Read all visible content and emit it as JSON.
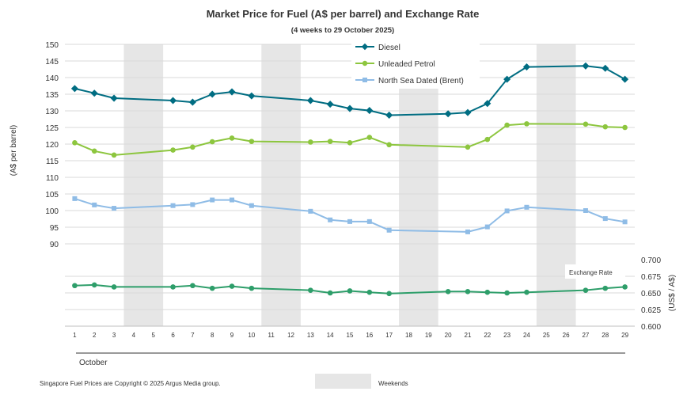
{
  "chart_data": {
    "type": "line",
    "title": "Market Price for Fuel (A$ per barrel) and Exchange Rate",
    "subtitle": "(4 weeks to 29 October 2025)",
    "ylabel": "(A$ per barrel)",
    "y2label": "(US$ / A$)",
    "xlabel": "October",
    "ylim": [
      90,
      150
    ],
    "yticks": [
      90,
      95,
      100,
      105,
      110,
      115,
      120,
      125,
      130,
      135,
      140,
      145,
      150
    ],
    "y2lim": [
      0.6,
      0.7
    ],
    "y2ticks": [
      "0.600",
      "0.625",
      "0.650",
      "0.675",
      "0.700"
    ],
    "categories": [
      "1",
      "2",
      "3",
      "4",
      "5",
      "6",
      "7",
      "8",
      "9",
      "10",
      "11",
      "12",
      "13",
      "14",
      "15",
      "16",
      "17",
      "18",
      "19",
      "20",
      "21",
      "22",
      "23",
      "24",
      "25",
      "26",
      "27",
      "28",
      "29"
    ],
    "weekends": [
      [
        4,
        5
      ],
      [
        11,
        12
      ],
      [
        18,
        19
      ],
      [
        25,
        26
      ]
    ],
    "series": [
      {
        "name": "Diesel",
        "axis": "left",
        "color": "#006d82",
        "marker": "diamond",
        "points": [
          [
            1,
            136.7
          ],
          [
            2,
            135.3
          ],
          [
            3,
            133.8
          ],
          [
            6,
            133.1
          ],
          [
            7,
            132.6
          ],
          [
            8,
            135.0
          ],
          [
            9,
            135.7
          ],
          [
            10,
            134.5
          ],
          [
            13,
            133.1
          ],
          [
            14,
            132.0
          ],
          [
            15,
            130.7
          ],
          [
            16,
            130.1
          ],
          [
            17,
            128.7
          ],
          [
            20,
            129.1
          ],
          [
            21,
            129.5
          ],
          [
            22,
            132.2
          ],
          [
            23,
            139.5
          ],
          [
            24,
            143.2
          ],
          [
            27,
            143.5
          ],
          [
            28,
            142.8
          ],
          [
            29,
            139.5
          ]
        ]
      },
      {
        "name": "Unleaded Petrol",
        "axis": "left",
        "color": "#8dc63f",
        "marker": "circle",
        "points": [
          [
            1,
            120.4
          ],
          [
            2,
            117.9
          ],
          [
            3,
            116.7
          ],
          [
            6,
            118.2
          ],
          [
            7,
            119.1
          ],
          [
            8,
            120.7
          ],
          [
            9,
            121.8
          ],
          [
            10,
            120.8
          ],
          [
            13,
            120.6
          ],
          [
            14,
            120.8
          ],
          [
            15,
            120.4
          ],
          [
            16,
            122.0
          ],
          [
            17,
            119.8
          ],
          [
            21,
            119.1
          ],
          [
            22,
            121.4
          ],
          [
            23,
            125.7
          ],
          [
            24,
            126.1
          ],
          [
            27,
            126.0
          ],
          [
            28,
            125.2
          ],
          [
            29,
            125.0
          ]
        ]
      },
      {
        "name": "North Sea Dated (Brent)",
        "axis": "left",
        "color": "#8fbce6",
        "marker": "square",
        "points": [
          [
            1,
            103.6
          ],
          [
            2,
            101.7
          ],
          [
            3,
            100.7
          ],
          [
            6,
            101.5
          ],
          [
            7,
            101.8
          ],
          [
            8,
            103.2
          ],
          [
            9,
            103.2
          ],
          [
            10,
            101.5
          ],
          [
            13,
            99.8
          ],
          [
            14,
            97.2
          ],
          [
            15,
            96.7
          ],
          [
            16,
            96.7
          ],
          [
            17,
            94.1
          ],
          [
            21,
            93.6
          ],
          [
            22,
            95.1
          ],
          [
            23,
            99.9
          ],
          [
            24,
            101.0
          ],
          [
            27,
            100.0
          ],
          [
            28,
            97.6
          ],
          [
            29,
            96.6
          ]
        ]
      },
      {
        "name": "Exchange Rate",
        "axis": "right",
        "color": "#2e9e6a",
        "marker": "circle",
        "points": [
          [
            1,
            0.661
          ],
          [
            2,
            0.662
          ],
          [
            3,
            0.659
          ],
          [
            6,
            0.659
          ],
          [
            7,
            0.661
          ],
          [
            8,
            0.657
          ],
          [
            9,
            0.66
          ],
          [
            10,
            0.657
          ],
          [
            13,
            0.654
          ],
          [
            14,
            0.65
          ],
          [
            15,
            0.653
          ],
          [
            16,
            0.651
          ],
          [
            17,
            0.649
          ],
          [
            20,
            0.652
          ],
          [
            21,
            0.652
          ],
          [
            22,
            0.651
          ],
          [
            23,
            0.65
          ],
          [
            24,
            0.651
          ],
          [
            27,
            0.654
          ],
          [
            28,
            0.657
          ],
          [
            29,
            0.659
          ]
        ]
      }
    ],
    "exchange_rate_label": "Exchange Rate"
  },
  "legend": {
    "items": [
      {
        "label": "Diesel",
        "color": "#006d82",
        "marker": "diamond"
      },
      {
        "label": "Unleaded Petrol",
        "color": "#8dc63f",
        "marker": "circle"
      },
      {
        "label": "North Sea Dated (Brent)",
        "color": "#8fbce6",
        "marker": "square"
      }
    ],
    "weekends_label": "Weekends",
    "weekend_color": "#e6e6e6"
  },
  "footer": {
    "copyright": "Singapore Fuel Prices are Copyright © 2025 Argus Media group."
  }
}
